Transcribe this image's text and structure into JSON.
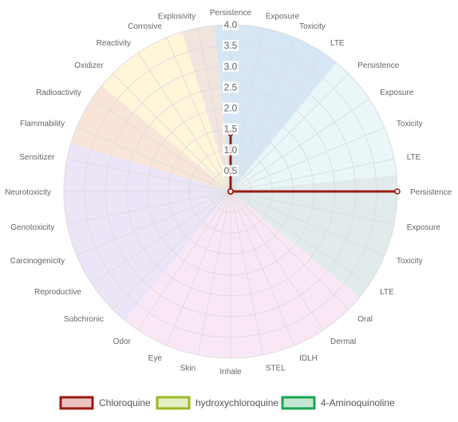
{
  "chart_data": {
    "type": "radar",
    "title": "",
    "rlim": [
      0,
      4.0
    ],
    "ticks": [
      "0.5",
      "1.0",
      "1.5",
      "2.0",
      "2.5",
      "3.0",
      "3.5",
      "4.0"
    ],
    "tick_values": [
      0.5,
      1.0,
      1.5,
      2.0,
      2.5,
      3.0,
      3.5,
      4.0
    ],
    "categories": [
      "Persistence",
      "Exposure",
      "Toxicity",
      "LTE",
      "Persistence",
      "Exposure",
      "Toxicity",
      "LTE",
      "Persistence",
      "Exposure",
      "Toxicity",
      "LTE",
      "Oral",
      "Dermal",
      "IDLH",
      "STEL",
      "Inhale",
      "Skin",
      "Eye",
      "Odor",
      "Subchronic",
      "Reproductive",
      "Carcinogenicity",
      "Genotoxicity",
      "Neurotoxicity",
      "Sensitizer",
      "Flammability",
      "Radioactivity",
      "Oxidizer",
      "Reactivity",
      "Corrosive",
      "Explosivity"
    ],
    "category_groups": [
      {
        "color": "#cfe2f3",
        "count": 4
      },
      {
        "color": "#e6f6f8",
        "count": 4
      },
      {
        "color": "#dce8e8",
        "count": 4
      },
      {
        "color": "#f9e3f5",
        "count": 8
      },
      {
        "color": "#e8e1f6",
        "count": 6
      },
      {
        "color": "#f8e1d0",
        "count": 2
      },
      {
        "color": "#fff4d2",
        "count": 3
      },
      {
        "color": "#efe0d8",
        "count": 1
      }
    ],
    "series": [
      {
        "name": "Chloroquine",
        "stroke": "#9b1b12",
        "fill": "rgba(170, 40, 30, 0.30)",
        "values": [
          1.4,
          0.0,
          0.0,
          0.0,
          0.0,
          0.0,
          0.0,
          0.0,
          4.0,
          0.0,
          0.0,
          0.0,
          0.0,
          0.0,
          0.0,
          0.0,
          0.0,
          0.0,
          0.0,
          0.0,
          0.0,
          0.0,
          0.0,
          0.0,
          0.0,
          0.0,
          0.0,
          0.0,
          0.0,
          0.0,
          0.0,
          0.0
        ]
      }
    ]
  },
  "legend": {
    "items": [
      {
        "label": "Chloroquine",
        "stroke": "#9b1b12",
        "fill": "rgba(190, 60, 50, 0.30)"
      },
      {
        "label": "hydroxychloroquine",
        "stroke": "#9aba22",
        "fill": "rgba(170, 200, 60, 0.30)"
      },
      {
        "label": "4-Aminoquinoline",
        "stroke": "#1aa552",
        "fill": "rgba(60, 180, 110, 0.30)"
      }
    ]
  }
}
